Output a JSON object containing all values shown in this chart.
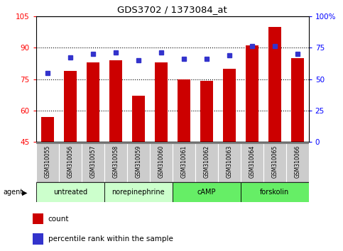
{
  "title": "GDS3702 / 1373084_at",
  "samples": [
    "GSM310055",
    "GSM310056",
    "GSM310057",
    "GSM310058",
    "GSM310059",
    "GSM310060",
    "GSM310061",
    "GSM310062",
    "GSM310063",
    "GSM310064",
    "GSM310065",
    "GSM310066"
  ],
  "bar_values": [
    57,
    79,
    83,
    84,
    67,
    83,
    75,
    74,
    80,
    91,
    100,
    85
  ],
  "dot_values_pct": [
    55,
    67,
    70,
    71,
    65,
    71,
    66,
    66,
    69,
    76,
    76,
    70
  ],
  "ylim_left": [
    45,
    105
  ],
  "ylim_right": [
    0,
    100
  ],
  "yticks_left": [
    45,
    60,
    75,
    90,
    105
  ],
  "yticks_right": [
    0,
    25,
    50,
    75,
    100
  ],
  "ytick_labels_left": [
    "45",
    "60",
    "75",
    "90",
    "105"
  ],
  "ytick_labels_right": [
    "0",
    "25",
    "50",
    "75",
    "100%"
  ],
  "bar_color": "#cc0000",
  "dot_color": "#3333cc",
  "bg_color": "#ffffff",
  "agent_groups": [
    {
      "label": "untreated",
      "start": 0,
      "end": 2,
      "color": "#ccffcc"
    },
    {
      "label": "norepinephrine",
      "start": 3,
      "end": 5,
      "color": "#ccffcc"
    },
    {
      "label": "cAMP",
      "start": 6,
      "end": 8,
      "color": "#66ee66"
    },
    {
      "label": "forskolin",
      "start": 9,
      "end": 11,
      "color": "#66ee66"
    }
  ],
  "tick_bg_color": "#cccccc",
  "legend_count_label": "count",
  "legend_pct_label": "percentile rank within the sample",
  "agent_label": "agent"
}
